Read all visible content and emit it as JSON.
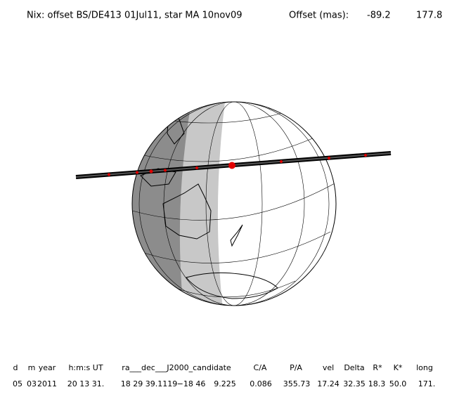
{
  "header": {
    "title": "Nix: offset BS/DE413 01Jul11, star MA 10nov09",
    "offset_label": "Offset (mas):",
    "offset_values": [
      "-89.2",
      "177.8"
    ]
  },
  "table": {
    "headers": [
      "d",
      "m",
      "year",
      "h:m:s UT",
      "ra___dec___J2000_candidate",
      "C/A",
      "P/A",
      "vel",
      "Delta",
      "R*",
      "K*",
      "long"
    ],
    "values": [
      "05",
      "03",
      "2011",
      "20 13 31.",
      "18 29 39.1119",
      "−18 46",
      "9.225",
      "0.086",
      "355.73",
      "17.24",
      "32.35",
      "18.3",
      "50.0",
      "171."
    ]
  }
}
